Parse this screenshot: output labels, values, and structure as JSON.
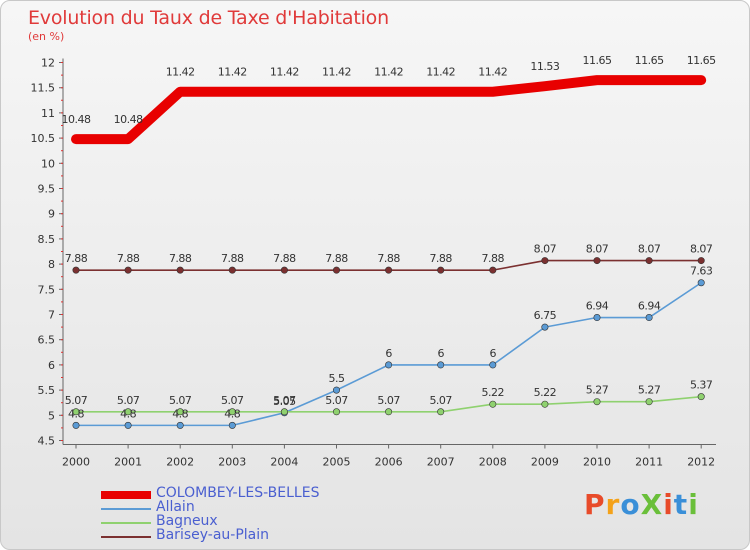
{
  "title": "Evolution du Taux de Taxe d'Habitation",
  "subtitle": "(en %)",
  "brand": {
    "logo_text": "ProXiti",
    "colors": [
      "#e84b2a",
      "#f4a21a",
      "#3a8fd8",
      "#6abf3a",
      "#e84b2a",
      "#3a8fd8",
      "#6abf3a"
    ]
  },
  "chart_data": {
    "type": "line",
    "title": "Evolution du Taux de Taxe d'Habitation",
    "ylabel": "(en %)",
    "xlabel": "",
    "ylim": [
      4.5,
      12
    ],
    "yticks": [
      4.5,
      5,
      5.5,
      6,
      6.5,
      7,
      7.5,
      8,
      8.5,
      9,
      9.5,
      10,
      10.5,
      11,
      11.5,
      12
    ],
    "grid": false,
    "legend_position": "bottom-left",
    "categories": [
      "2000",
      "2001",
      "2002",
      "2003",
      "2004",
      "2005",
      "2006",
      "2007",
      "2008",
      "2009",
      "2010",
      "2011",
      "2012"
    ],
    "series": [
      {
        "name": "COLOMBEY-LES-BELLES",
        "color": "#e80000",
        "values": [
          10.48,
          10.48,
          11.42,
          11.42,
          11.42,
          11.42,
          11.42,
          11.42,
          11.42,
          11.53,
          11.65,
          11.65,
          11.65
        ]
      },
      {
        "name": "Allain",
        "color": "#5b9bd5",
        "values": [
          4.8,
          4.8,
          4.8,
          4.8,
          5.05,
          5.5,
          6,
          6,
          6,
          6.75,
          6.94,
          6.94,
          7.63
        ]
      },
      {
        "name": "Bagneux",
        "color": "#8fd16f",
        "values": [
          5.07,
          5.07,
          5.07,
          5.07,
          5.07,
          5.07,
          5.07,
          5.07,
          5.22,
          5.22,
          5.27,
          5.27,
          5.37
        ]
      },
      {
        "name": "Barisey-au-Plain",
        "color": "#7b3030",
        "values": [
          7.88,
          7.88,
          7.88,
          7.88,
          7.88,
          7.88,
          7.88,
          7.88,
          7.88,
          8.07,
          8.07,
          8.07,
          8.07
        ]
      }
    ],
    "data_labels": {
      "COLOMBEY-LES-BELLES": [
        "10.48",
        "10.48",
        "11.42",
        "11.42",
        "11.42",
        "11.42",
        "11.42",
        "11.42",
        "11.42",
        "11.53",
        "11.65",
        "11.65",
        "11.65"
      ],
      "Allain": [
        "4.8",
        "4.8",
        "4.8",
        "4.8",
        "5.05",
        "5.5",
        "6",
        "6",
        "6",
        "6.75",
        "6.94",
        "6.94",
        "7.63"
      ],
      "Bagneux": [
        "5.07",
        "5.07",
        "5.07",
        "5.07",
        "5.07",
        "5.07",
        "5.07",
        "5.07",
        "5.22",
        "5.22",
        "5.27",
        "5.27",
        "5.37"
      ],
      "Barisey-au-Plain": [
        "7.88",
        "7.88",
        "7.88",
        "7.88",
        "7.88",
        "7.88",
        "7.88",
        "7.88",
        "7.88",
        "8.07",
        "8.07",
        "8.07",
        "8.07"
      ]
    }
  }
}
